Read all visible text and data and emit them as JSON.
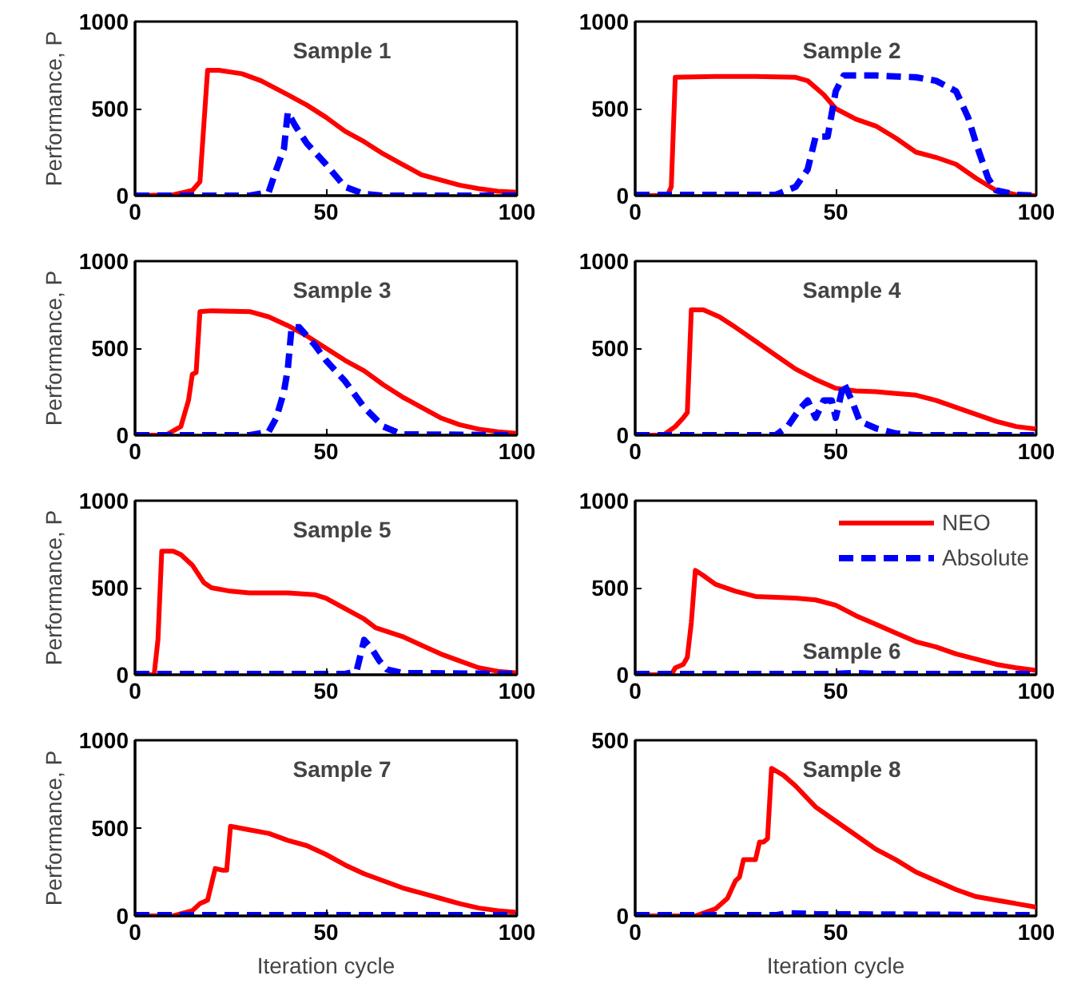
{
  "chart_data": [
    {
      "type": "line",
      "title": "Sample 1",
      "ylabel": "Performance, P",
      "xlim": [
        0,
        100
      ],
      "xticks": [
        0,
        50,
        100
      ],
      "ylim": [
        0,
        1000
      ],
      "yticks": [
        0,
        500,
        1000
      ],
      "grid": false,
      "tick_labels": true,
      "series": [
        {
          "color": "#ff0000",
          "line_style": "solid",
          "x": [
            0,
            10,
            15,
            17,
            18,
            19,
            22,
            28,
            33,
            40,
            45,
            50,
            55,
            60,
            65,
            70,
            75,
            80,
            85,
            90,
            95,
            100
          ],
          "values": [
            0,
            5,
            30,
            80,
            400,
            720,
            720,
            700,
            660,
            580,
            520,
            450,
            370,
            310,
            240,
            180,
            120,
            90,
            60,
            40,
            25,
            20
          ]
        },
        {
          "color": "#0000ff",
          "line_style": "dashed",
          "x": [
            0,
            30,
            35,
            37,
            39,
            40,
            42,
            45,
            50,
            55,
            60,
            65,
            100
          ],
          "values": [
            0,
            0,
            20,
            150,
            270,
            480,
            400,
            300,
            180,
            50,
            10,
            0,
            0
          ]
        }
      ]
    },
    {
      "type": "line",
      "title": "Sample 2",
      "xlim": [
        0,
        100
      ],
      "xticks": [
        0,
        50,
        100
      ],
      "ylim": [
        0,
        1000
      ],
      "yticks": [
        0,
        500,
        1000
      ],
      "grid": false,
      "series": [
        {
          "color": "#ff0000",
          "line_style": "solid",
          "x": [
            0,
            8,
            9,
            10,
            20,
            30,
            40,
            43,
            47,
            50,
            55,
            60,
            65,
            70,
            75,
            80,
            85,
            90,
            95,
            100
          ],
          "values": [
            0,
            0,
            50,
            680,
            685,
            685,
            680,
            660,
            580,
            500,
            440,
            400,
            330,
            250,
            220,
            180,
            100,
            30,
            5,
            0
          ]
        },
        {
          "color": "#0000ff",
          "line_style": "dashed",
          "x": [
            0,
            35,
            40,
            43,
            45,
            48,
            50,
            52,
            60,
            70,
            75,
            80,
            83,
            85,
            88,
            90,
            95,
            100
          ],
          "values": [
            5,
            5,
            50,
            150,
            340,
            340,
            600,
            690,
            690,
            680,
            660,
            600,
            450,
            300,
            100,
            30,
            5,
            0
          ]
        }
      ]
    },
    {
      "type": "line",
      "title": "Sample 3",
      "ylabel": "Performance, P",
      "xlim": [
        0,
        100
      ],
      "xticks": [
        0,
        50,
        100
      ],
      "ylim": [
        0,
        1000
      ],
      "yticks": [
        0,
        500,
        1000
      ],
      "grid": false,
      "series": [
        {
          "color": "#ff0000",
          "line_style": "solid",
          "x": [
            0,
            8,
            12,
            14,
            15,
            16,
            17,
            20,
            30,
            35,
            40,
            45,
            50,
            55,
            60,
            65,
            70,
            75,
            80,
            85,
            90,
            95,
            100
          ],
          "values": [
            0,
            0,
            50,
            200,
            350,
            360,
            710,
            715,
            710,
            680,
            630,
            570,
            500,
            430,
            370,
            290,
            220,
            160,
            100,
            60,
            35,
            20,
            10
          ]
        },
        {
          "color": "#0000ff",
          "line_style": "dashed",
          "x": [
            0,
            30,
            35,
            37,
            39,
            40,
            41,
            43,
            47,
            50,
            55,
            60,
            65,
            70,
            100
          ],
          "values": [
            0,
            0,
            20,
            100,
            250,
            380,
            620,
            620,
            520,
            430,
            310,
            160,
            50,
            5,
            0
          ]
        }
      ]
    },
    {
      "type": "line",
      "title": "Sample 4",
      "xlim": [
        0,
        100
      ],
      "xticks": [
        0,
        50,
        100
      ],
      "ylim": [
        0,
        1000
      ],
      "yticks": [
        0,
        500,
        1000
      ],
      "grid": false,
      "series": [
        {
          "color": "#ff0000",
          "line_style": "solid",
          "x": [
            0,
            7,
            10,
            12,
            13,
            14,
            17,
            21,
            25,
            30,
            35,
            40,
            45,
            50,
            55,
            60,
            65,
            70,
            75,
            80,
            85,
            90,
            95,
            100
          ],
          "values": [
            0,
            0,
            50,
            100,
            130,
            720,
            720,
            680,
            620,
            540,
            460,
            380,
            320,
            270,
            255,
            250,
            240,
            230,
            200,
            160,
            120,
            80,
            50,
            35
          ]
        },
        {
          "color": "#0000ff",
          "line_style": "dashed",
          "x": [
            0,
            35,
            38,
            41,
            43,
            45,
            47,
            49,
            50,
            52,
            54,
            56,
            60,
            65,
            70,
            100
          ],
          "values": [
            0,
            0,
            50,
            150,
            200,
            100,
            200,
            200,
            100,
            300,
            200,
            80,
            40,
            10,
            0,
            0
          ]
        }
      ]
    },
    {
      "type": "line",
      "title": "Sample 5",
      "ylabel": "Performance, P",
      "xlim": [
        0,
        100
      ],
      "xticks": [
        0,
        50,
        100
      ],
      "ylim": [
        0,
        1000
      ],
      "yticks": [
        0,
        500,
        1000
      ],
      "grid": false,
      "series": [
        {
          "color": "#ff0000",
          "line_style": "solid",
          "x": [
            0,
            5,
            6,
            7,
            10,
            12,
            15,
            18,
            20,
            25,
            30,
            40,
            47,
            50,
            55,
            60,
            63,
            70,
            75,
            80,
            85,
            90,
            95,
            100
          ],
          "values": [
            0,
            0,
            200,
            710,
            710,
            690,
            630,
            530,
            500,
            480,
            470,
            470,
            460,
            440,
            380,
            320,
            270,
            220,
            170,
            120,
            80,
            40,
            20,
            10
          ]
        },
        {
          "color": "#0000ff",
          "line_style": "dashed",
          "x": [
            0,
            55,
            58,
            60,
            62,
            64,
            66,
            70,
            100
          ],
          "values": [
            5,
            5,
            20,
            200,
            150,
            80,
            30,
            10,
            5
          ]
        }
      ]
    },
    {
      "type": "line",
      "title": "Sample 6",
      "xlim": [
        0,
        100
      ],
      "xticks": [
        0,
        50,
        100
      ],
      "ylim": [
        0,
        1000
      ],
      "yticks": [
        0,
        500,
        1000
      ],
      "grid": false,
      "legend": "top right",
      "series": [
        {
          "name": "NEO",
          "color": "#ff0000",
          "line_style": "solid",
          "x": [
            0,
            9,
            10,
            12,
            13,
            14,
            15,
            17,
            20,
            25,
            30,
            40,
            45,
            50,
            55,
            60,
            65,
            70,
            75,
            80,
            85,
            90,
            95,
            100
          ],
          "values": [
            0,
            0,
            40,
            60,
            100,
            300,
            600,
            570,
            520,
            480,
            450,
            440,
            430,
            400,
            340,
            290,
            240,
            190,
            160,
            120,
            90,
            60,
            40,
            25
          ]
        },
        {
          "name": "Absolute",
          "color": "#0000ff",
          "line_style": "dashed",
          "x": [
            0,
            50,
            55,
            60,
            100
          ],
          "values": [
            5,
            5,
            10,
            5,
            5
          ]
        }
      ]
    },
    {
      "type": "line",
      "title": "Sample 7",
      "xlabel": "Iteration cycle",
      "ylabel": "Performance, P",
      "xlim": [
        0,
        100
      ],
      "xticks": [
        0,
        50,
        100
      ],
      "ylim": [
        0,
        1000
      ],
      "yticks": [
        0,
        500,
        1000
      ],
      "grid": false,
      "series": [
        {
          "color": "#ff0000",
          "line_style": "solid",
          "x": [
            0,
            10,
            15,
            17,
            19,
            21,
            23,
            24,
            25,
            30,
            35,
            40,
            45,
            50,
            55,
            60,
            65,
            70,
            75,
            80,
            85,
            90,
            95,
            100
          ],
          "values": [
            0,
            0,
            30,
            70,
            90,
            270,
            260,
            260,
            510,
            490,
            470,
            430,
            400,
            350,
            290,
            240,
            200,
            160,
            130,
            100,
            70,
            45,
            30,
            20
          ]
        },
        {
          "color": "#0000ff",
          "line_style": "dashed",
          "x": [
            0,
            100
          ],
          "values": [
            5,
            5
          ]
        }
      ]
    },
    {
      "type": "line",
      "title": "Sample 8",
      "xlabel": "Iteration cycle",
      "xlim": [
        0,
        100
      ],
      "xticks": [
        0,
        50,
        100
      ],
      "ylim": [
        0,
        500
      ],
      "yticks": [
        0,
        500
      ],
      "grid": false,
      "series": [
        {
          "color": "#ff0000",
          "line_style": "solid",
          "x": [
            0,
            15,
            20,
            23,
            25,
            26,
            27,
            30,
            31,
            32,
            33,
            34,
            37,
            40,
            45,
            50,
            55,
            60,
            65,
            70,
            75,
            80,
            85,
            90,
            95,
            100
          ],
          "values": [
            0,
            0,
            20,
            50,
            100,
            110,
            160,
            160,
            210,
            210,
            220,
            420,
            400,
            370,
            310,
            270,
            230,
            190,
            160,
            125,
            100,
            75,
            55,
            45,
            35,
            25
          ]
        },
        {
          "color": "#0000ff",
          "line_style": "dashed",
          "x": [
            0,
            35,
            38,
            45,
            100
          ],
          "values": [
            2,
            2,
            8,
            5,
            2
          ]
        }
      ]
    }
  ]
}
